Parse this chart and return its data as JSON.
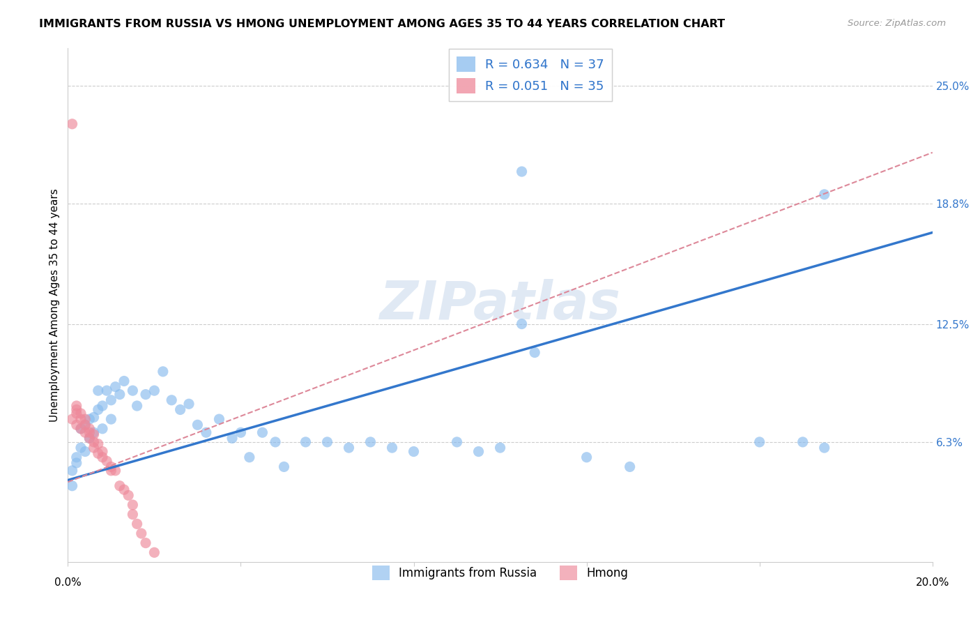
{
  "title": "IMMIGRANTS FROM RUSSIA VS HMONG UNEMPLOYMENT AMONG AGES 35 TO 44 YEARS CORRELATION CHART",
  "source": "Source: ZipAtlas.com",
  "ylabel": "Unemployment Among Ages 35 to 44 years",
  "xlim": [
    0.0,
    0.2
  ],
  "ylim": [
    0.0,
    0.27
  ],
  "ytick_labels": [
    "6.3%",
    "12.5%",
    "18.8%",
    "25.0%"
  ],
  "ytick_values": [
    0.063,
    0.125,
    0.188,
    0.25
  ],
  "xtick_values": [
    0.0,
    0.04,
    0.08,
    0.12,
    0.16,
    0.2
  ],
  "russia_scatter_color": "#88bbee",
  "hmong_scatter_color": "#ee8899",
  "russia_line_color": "#3377cc",
  "hmong_line_color": "#dd8899",
  "background_color": "#ffffff",
  "grid_color": "#cccccc",
  "watermark": "ZIPatlas",
  "watermark_color": "#c8d8ec",
  "russia_line": [
    0.0,
    0.043,
    0.2,
    0.173
  ],
  "hmong_line": [
    0.0,
    0.042,
    0.2,
    0.215
  ],
  "russia_points": [
    [
      0.001,
      0.04
    ],
    [
      0.001,
      0.048
    ],
    [
      0.002,
      0.052
    ],
    [
      0.002,
      0.055
    ],
    [
      0.003,
      0.06
    ],
    [
      0.003,
      0.07
    ],
    [
      0.004,
      0.058
    ],
    [
      0.004,
      0.072
    ],
    [
      0.005,
      0.065
    ],
    [
      0.005,
      0.075
    ],
    [
      0.006,
      0.068
    ],
    [
      0.006,
      0.076
    ],
    [
      0.007,
      0.08
    ],
    [
      0.007,
      0.09
    ],
    [
      0.008,
      0.082
    ],
    [
      0.008,
      0.07
    ],
    [
      0.009,
      0.09
    ],
    [
      0.01,
      0.085
    ],
    [
      0.01,
      0.075
    ],
    [
      0.011,
      0.092
    ],
    [
      0.012,
      0.088
    ],
    [
      0.013,
      0.095
    ],
    [
      0.015,
      0.09
    ],
    [
      0.016,
      0.082
    ],
    [
      0.018,
      0.088
    ],
    [
      0.02,
      0.09
    ],
    [
      0.022,
      0.1
    ],
    [
      0.024,
      0.085
    ],
    [
      0.026,
      0.08
    ],
    [
      0.028,
      0.083
    ],
    [
      0.03,
      0.072
    ],
    [
      0.032,
      0.068
    ],
    [
      0.035,
      0.075
    ],
    [
      0.038,
      0.065
    ],
    [
      0.04,
      0.068
    ],
    [
      0.042,
      0.055
    ],
    [
      0.045,
      0.068
    ],
    [
      0.048,
      0.063
    ],
    [
      0.05,
      0.05
    ],
    [
      0.055,
      0.063
    ],
    [
      0.06,
      0.063
    ],
    [
      0.065,
      0.06
    ],
    [
      0.07,
      0.063
    ],
    [
      0.075,
      0.06
    ],
    [
      0.08,
      0.058
    ],
    [
      0.09,
      0.063
    ],
    [
      0.095,
      0.058
    ],
    [
      0.1,
      0.06
    ],
    [
      0.105,
      0.125
    ],
    [
      0.108,
      0.11
    ],
    [
      0.12,
      0.055
    ],
    [
      0.13,
      0.05
    ],
    [
      0.16,
      0.063
    ],
    [
      0.17,
      0.063
    ],
    [
      0.175,
      0.06
    ],
    [
      0.105,
      0.205
    ],
    [
      0.175,
      0.193
    ]
  ],
  "hmong_points": [
    [
      0.001,
      0.23
    ],
    [
      0.001,
      0.075
    ],
    [
      0.002,
      0.072
    ],
    [
      0.002,
      0.078
    ],
    [
      0.002,
      0.08
    ],
    [
      0.002,
      0.082
    ],
    [
      0.003,
      0.07
    ],
    [
      0.003,
      0.075
    ],
    [
      0.003,
      0.078
    ],
    [
      0.004,
      0.068
    ],
    [
      0.004,
      0.072
    ],
    [
      0.004,
      0.075
    ],
    [
      0.005,
      0.065
    ],
    [
      0.005,
      0.068
    ],
    [
      0.005,
      0.07
    ],
    [
      0.006,
      0.06
    ],
    [
      0.006,
      0.063
    ],
    [
      0.006,
      0.067
    ],
    [
      0.007,
      0.057
    ],
    [
      0.007,
      0.062
    ],
    [
      0.008,
      0.055
    ],
    [
      0.008,
      0.058
    ],
    [
      0.009,
      0.053
    ],
    [
      0.01,
      0.05
    ],
    [
      0.01,
      0.048
    ],
    [
      0.011,
      0.048
    ],
    [
      0.012,
      0.04
    ],
    [
      0.013,
      0.038
    ],
    [
      0.014,
      0.035
    ],
    [
      0.015,
      0.03
    ],
    [
      0.015,
      0.025
    ],
    [
      0.016,
      0.02
    ],
    [
      0.017,
      0.015
    ],
    [
      0.018,
      0.01
    ],
    [
      0.02,
      0.005
    ]
  ]
}
